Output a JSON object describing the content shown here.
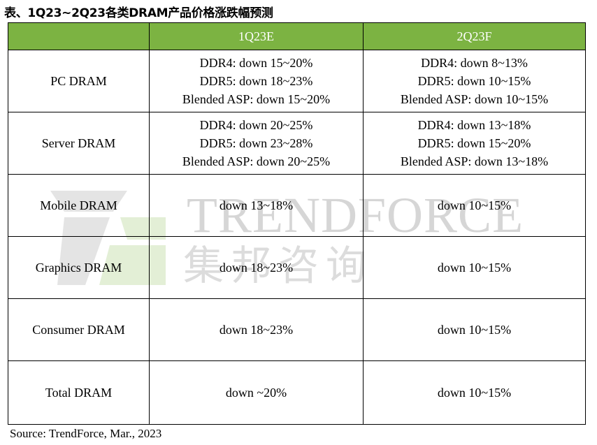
{
  "title": "表、1Q23~2Q23各类DRAM产品价格涨跌幅预测",
  "watermark": {
    "brand": "TRENDFORCE",
    "brand_cn": "集邦咨询"
  },
  "source": "Source: TrendForce, Mar., 2023",
  "colors": {
    "header_bg": "#7cb342",
    "header_text": "#ffffff",
    "grid": "#000000",
    "watermark": "#d6d6d6"
  },
  "chart_data": {
    "type": "table",
    "columns": [
      "",
      "1Q23E",
      "2Q23F"
    ],
    "rows": [
      {
        "category": "PC DRAM",
        "q1": [
          "DDR4: down 15~20%",
          "DDR5: down 18~23%",
          "Blended ASP: down 15~20%"
        ],
        "q2": [
          "DDR4: down 8~13%",
          "DDR5: down 10~15%",
          "Blended ASP: down 10~15%"
        ]
      },
      {
        "category": "Server DRAM",
        "q1": [
          "DDR4: down 20~25%",
          "DDR5: down 23~28%",
          "Blended ASP: down 20~25%"
        ],
        "q2": [
          "DDR4: down 13~18%",
          "DDR5: down 15~20%",
          "Blended ASP: down 13~18%"
        ]
      },
      {
        "category": "Mobile DRAM",
        "q1": [
          "down 13~18%"
        ],
        "q2": [
          "down 10~15%"
        ]
      },
      {
        "category": "Graphics DRAM",
        "q1": [
          "down 18~23%"
        ],
        "q2": [
          "down 10~15%"
        ]
      },
      {
        "category": "Consumer DRAM",
        "q1": [
          "down 18~23%"
        ],
        "q2": [
          "down 10~15%"
        ]
      },
      {
        "category": "Total DRAM",
        "q1": [
          "down ~20%"
        ],
        "q2": [
          "down 10~15%"
        ]
      }
    ]
  }
}
